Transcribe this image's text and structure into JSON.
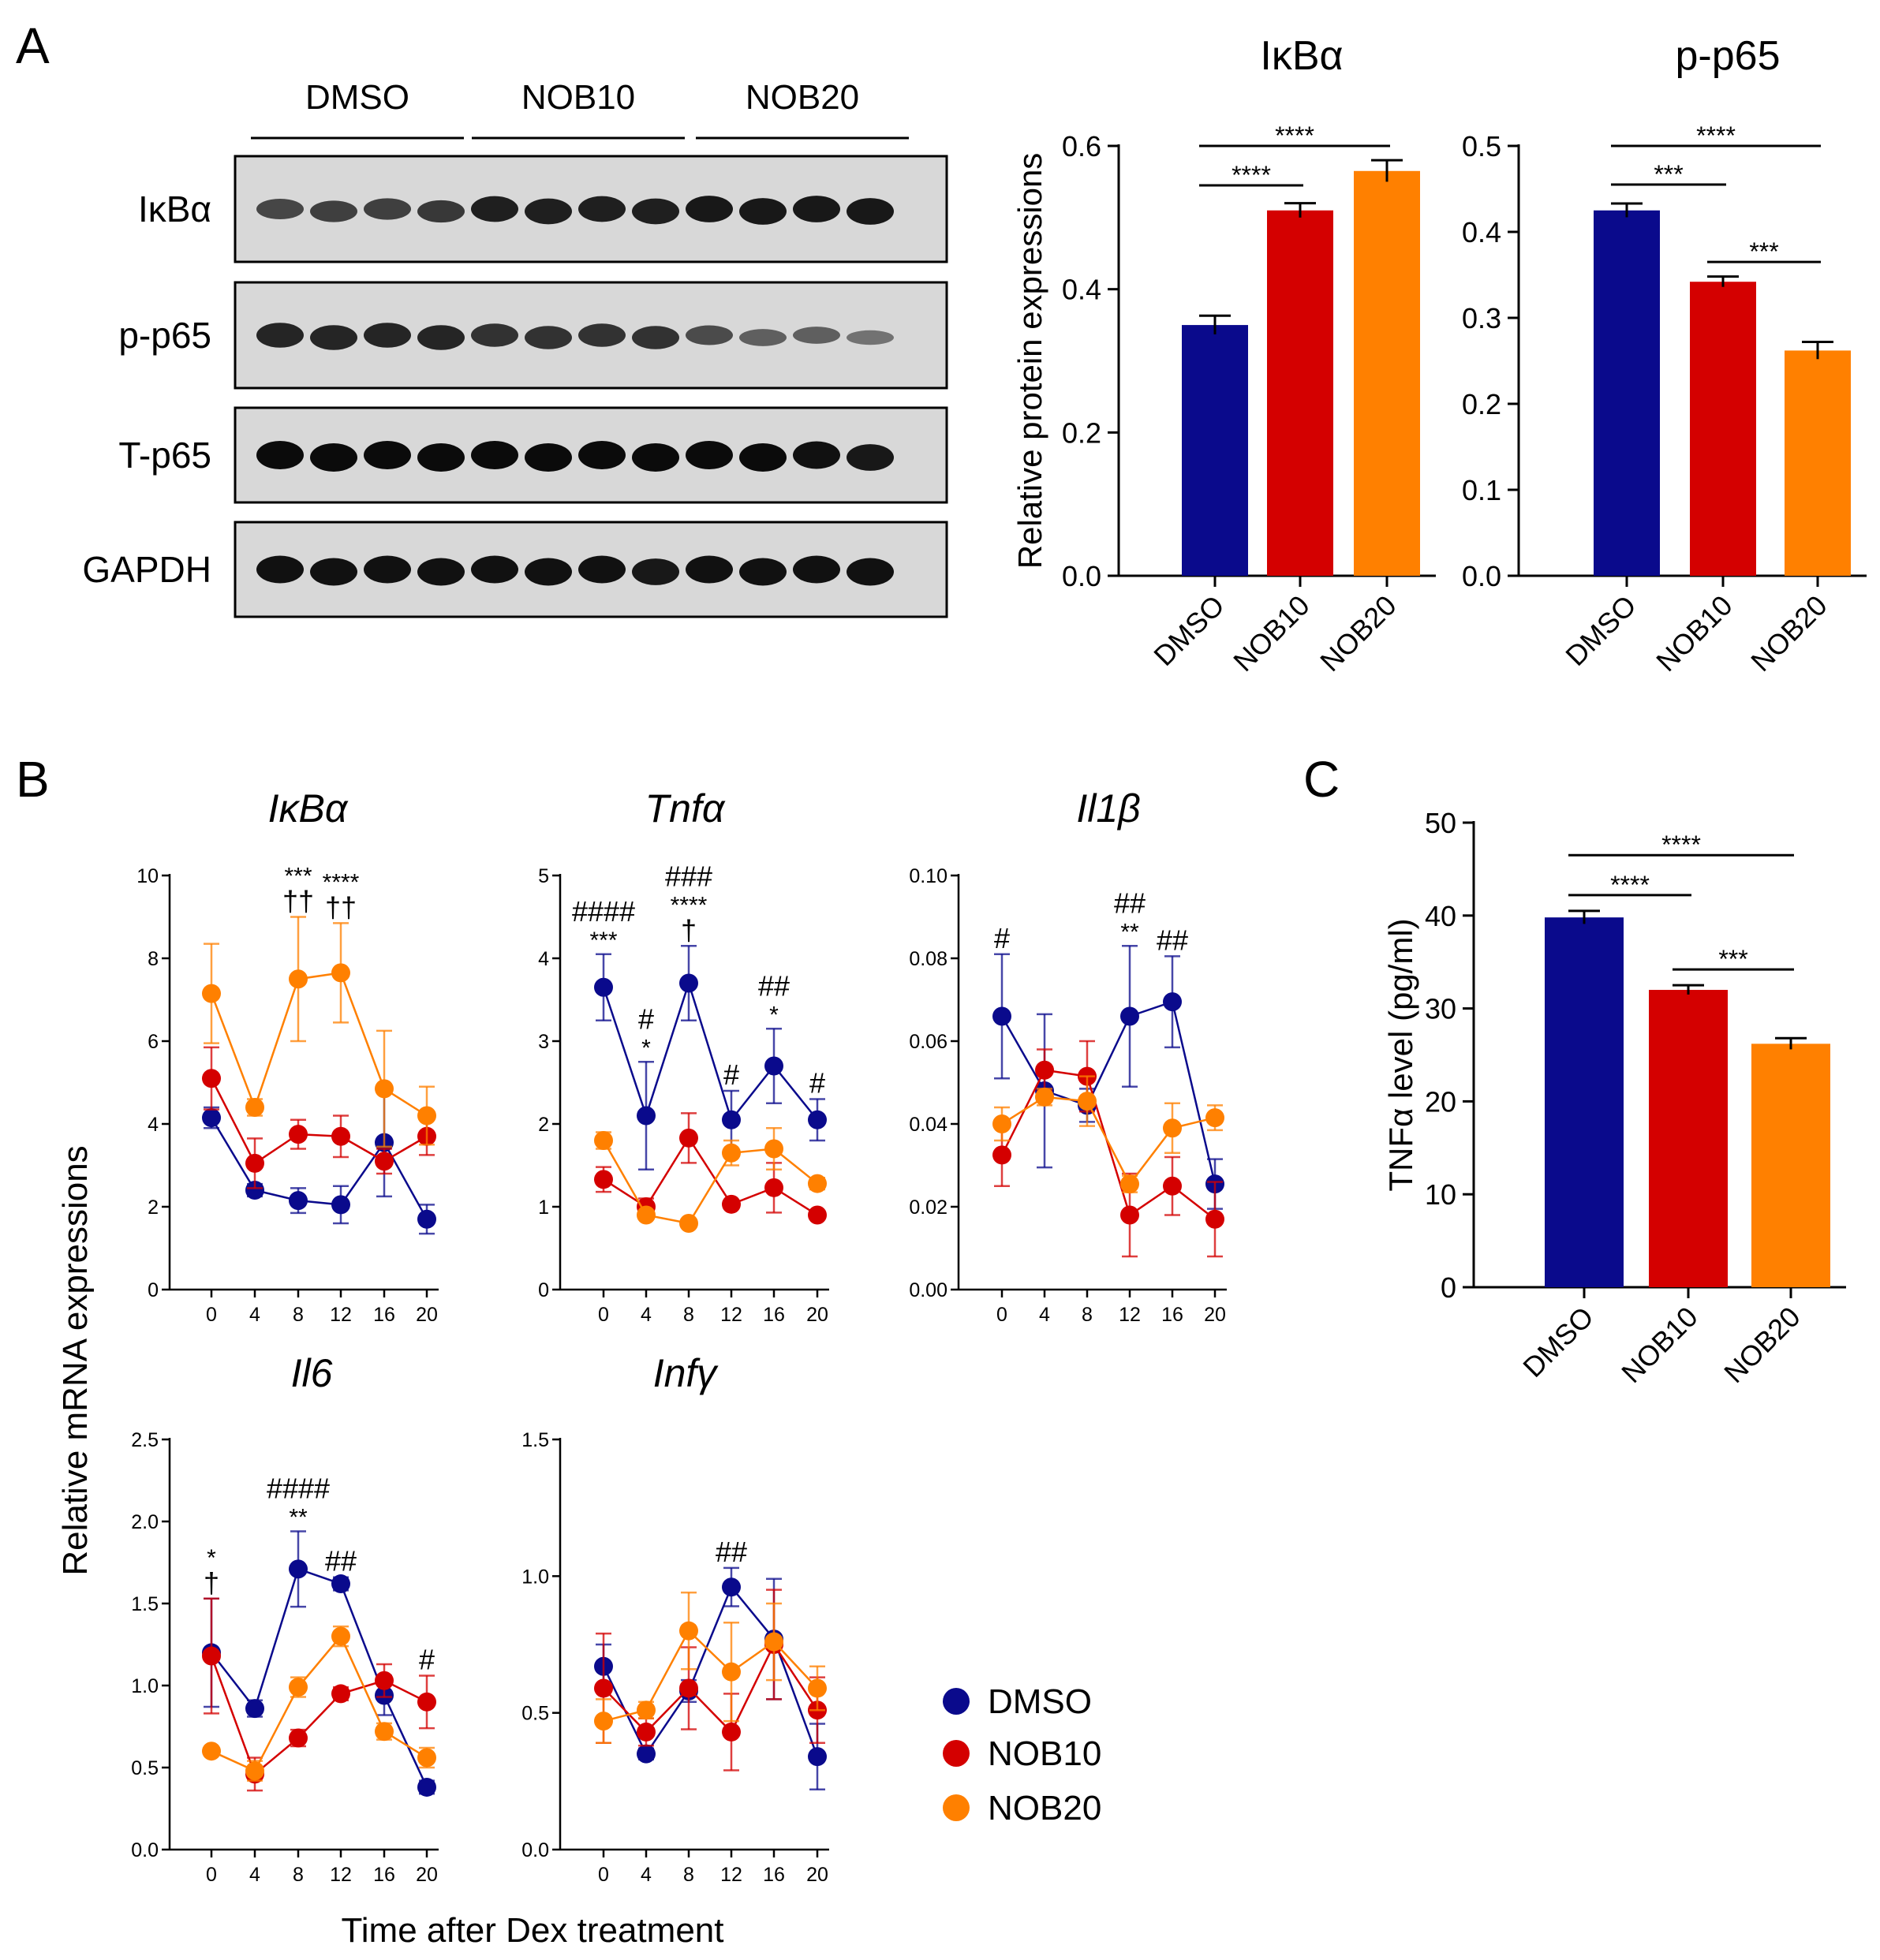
{
  "colors": {
    "DMSO": "#0a0a8c",
    "NOB10": "#d40000",
    "NOB20": "#ff8000"
  },
  "panel_labels": [
    "A",
    "B",
    "C"
  ],
  "blot": {
    "groups": [
      "DMSO",
      "NOB10",
      "NOB20"
    ],
    "rows": [
      {
        "label": "IκBα",
        "intensity": [
          0.55,
          0.6,
          0.6,
          0.65,
          0.85,
          0.85,
          0.85,
          0.85,
          0.9,
          0.9,
          0.9,
          0.9
        ]
      },
      {
        "label": "p-p65",
        "intensity": [
          0.8,
          0.8,
          0.8,
          0.8,
          0.7,
          0.7,
          0.7,
          0.7,
          0.5,
          0.35,
          0.35,
          0.2
        ]
      },
      {
        "label": "T-p65",
        "intensity": [
          1,
          1,
          1,
          1,
          1,
          1,
          1,
          1,
          1,
          1,
          0.95,
          0.9
        ]
      },
      {
        "label": "GAPDH",
        "intensity": [
          0.95,
          0.95,
          0.95,
          0.95,
          0.95,
          0.95,
          0.95,
          0.9,
          0.95,
          0.95,
          0.95,
          0.95
        ]
      }
    ]
  },
  "legend": [
    "DMSO",
    "NOB10",
    "NOB20"
  ],
  "x_common_label": "Time after Dex treatment",
  "y_common_label": "Relative mRNA expressions",
  "chart_data": [
    {
      "id": "A-ikba",
      "type": "bar",
      "title": "IκBα",
      "ylabel": "Relative protein expressions",
      "categories": [
        "DMSO",
        "NOB10",
        "NOB20"
      ],
      "values": [
        0.35,
        0.51,
        0.565
      ],
      "errors": [
        0.013,
        0.01,
        0.015
      ],
      "ylim": [
        0,
        0.6
      ],
      "yticks": [
        "0.0",
        "0.2",
        "0.4",
        "0.6"
      ],
      "significance": [
        {
          "from": 0,
          "to": 1,
          "y": 0.545,
          "text": "****"
        },
        {
          "from": 0,
          "to": 2,
          "y": 0.6,
          "text": "****"
        }
      ]
    },
    {
      "id": "A-pp65",
      "type": "bar",
      "title": "p-p65",
      "ylabel": "",
      "categories": [
        "DMSO",
        "NOB10",
        "NOB20"
      ],
      "values": [
        0.425,
        0.342,
        0.262
      ],
      "errors": [
        0.008,
        0.006,
        0.01
      ],
      "ylim": [
        0,
        0.5
      ],
      "yticks": [
        "0.0",
        "0.1",
        "0.2",
        "0.3",
        "0.4",
        "0.5"
      ],
      "significance": [
        {
          "from": 0,
          "to": 1,
          "y": 0.455,
          "text": "***"
        },
        {
          "from": 0,
          "to": 2,
          "y": 0.5,
          "text": "****"
        },
        {
          "from": 1,
          "to": 2,
          "y": 0.365,
          "text": "***"
        }
      ]
    },
    {
      "id": "C-tnfa",
      "type": "bar",
      "title": "",
      "ylabel": "TNFα level (pg/ml)",
      "categories": [
        "DMSO",
        "NOB10",
        "NOB20"
      ],
      "values": [
        39.8,
        32,
        26.2
      ],
      "errors": [
        0.7,
        0.5,
        0.6
      ],
      "ylim": [
        0,
        50
      ],
      "yticks": [
        "0",
        "10",
        "20",
        "30",
        "40",
        "50"
      ],
      "significance": [
        {
          "from": 0,
          "to": 1,
          "y": 42.2,
          "text": "****"
        },
        {
          "from": 0,
          "to": 2,
          "y": 46.5,
          "text": "****"
        },
        {
          "from": 1,
          "to": 2,
          "y": 34.2,
          "text": "***"
        }
      ]
    },
    {
      "id": "B-ikba",
      "type": "line",
      "title": "IκBα",
      "x": [
        0,
        4,
        8,
        12,
        16,
        20
      ],
      "ylim": [
        0,
        10
      ],
      "yticks": [
        "0",
        "2",
        "4",
        "6",
        "8",
        "10"
      ],
      "series": [
        {
          "name": "DMSO",
          "values": [
            4.15,
            2.4,
            2.15,
            2.05,
            3.55,
            1.7
          ],
          "errors": [
            0.25,
            0.15,
            0.3,
            0.45,
            1.3,
            0.35
          ]
        },
        {
          "name": "NOB10",
          "values": [
            5.1,
            3.05,
            3.75,
            3.7,
            3.1,
            3.7
          ],
          "errors": [
            0.75,
            0.6,
            0.35,
            0.5,
            0.3,
            0.45
          ]
        },
        {
          "name": "NOB20",
          "values": [
            7.15,
            4.4,
            7.5,
            7.65,
            4.85,
            4.2
          ],
          "errors": [
            1.2,
            0.2,
            1.5,
            1.2,
            1.4,
            0.7
          ]
        }
      ],
      "annotations": [
        {
          "x": 8,
          "lines": [
            "***",
            "††"
          ]
        },
        {
          "x": 12,
          "lines": [
            "****",
            "††"
          ]
        }
      ]
    },
    {
      "id": "B-tnfa",
      "type": "line",
      "title": "Tnfα",
      "x": [
        0,
        4,
        8,
        12,
        16,
        20
      ],
      "ylim": [
        0,
        5
      ],
      "yticks": [
        "0",
        "1",
        "2",
        "3",
        "4",
        "5"
      ],
      "series": [
        {
          "name": "DMSO",
          "values": [
            3.65,
            2.1,
            3.7,
            2.05,
            2.7,
            2.05
          ],
          "errors": [
            0.4,
            0.65,
            0.45,
            0.35,
            0.45,
            0.25
          ]
        },
        {
          "name": "NOB10",
          "values": [
            1.33,
            1.0,
            1.83,
            1.03,
            1.23,
            0.9
          ],
          "errors": [
            0.15,
            0.1,
            0.3,
            0.05,
            0.3,
            0.05
          ]
        },
        {
          "name": "NOB20",
          "values": [
            1.8,
            0.9,
            0.8,
            1.65,
            1.7,
            1.28
          ],
          "errors": [
            0.1,
            0.05,
            0.05,
            0.15,
            0.25,
            0.07
          ]
        }
      ],
      "annotations": [
        {
          "x": 0,
          "lines": [
            "####",
            "***"
          ]
        },
        {
          "x": 4,
          "lines": [
            "#",
            "*"
          ]
        },
        {
          "x": 8,
          "lines": [
            "###",
            "****",
            "†"
          ]
        },
        {
          "x": 12,
          "lines": [
            "#"
          ]
        },
        {
          "x": 16,
          "lines": [
            "##",
            "*"
          ]
        },
        {
          "x": 20,
          "lines": [
            "#"
          ]
        }
      ]
    },
    {
      "id": "B-il1b",
      "type": "line",
      "title": "Il1β",
      "x": [
        0,
        4,
        8,
        12,
        16,
        20
      ],
      "ylim": [
        0,
        0.1
      ],
      "yticks": [
        "0.00",
        "0.02",
        "0.04",
        "0.06",
        "0.08",
        "0.10"
      ],
      "series": [
        {
          "name": "DMSO",
          "values": [
            0.066,
            0.048,
            0.0445,
            0.066,
            0.0695,
            0.0255
          ],
          "errors": [
            0.015,
            0.0185,
            0.004,
            0.017,
            0.011,
            0.006
          ]
        },
        {
          "name": "NOB10",
          "values": [
            0.0325,
            0.053,
            0.0515,
            0.018,
            0.025,
            0.017
          ],
          "errors": [
            0.0075,
            0.005,
            0.0085,
            0.01,
            0.007,
            0.009
          ]
        },
        {
          "name": "NOB20",
          "values": [
            0.04,
            0.0465,
            0.0455,
            0.0255,
            0.039,
            0.0415
          ],
          "errors": [
            0.004,
            0.002,
            0.006,
            0.002,
            0.006,
            0.003
          ]
        }
      ],
      "annotations": [
        {
          "x": 0,
          "lines": [
            "#"
          ]
        },
        {
          "x": 12,
          "lines": [
            "##",
            "**"
          ]
        },
        {
          "x": 16,
          "lines": [
            "##"
          ]
        }
      ]
    },
    {
      "id": "B-il6",
      "type": "line",
      "title": "Il6",
      "x": [
        0,
        4,
        8,
        12,
        16,
        20
      ],
      "ylim": [
        0,
        2.5
      ],
      "yticks": [
        "0.0",
        "0.5",
        "1.0",
        "1.5",
        "2.0",
        "2.5"
      ],
      "series": [
        {
          "name": "DMSO",
          "values": [
            1.2,
            0.86,
            1.71,
            1.62,
            0.94,
            0.38
          ],
          "errors": [
            0.33,
            0.05,
            0.23,
            0.04,
            0.12,
            0.04
          ]
        },
        {
          "name": "NOB10",
          "values": [
            1.18,
            0.46,
            0.68,
            0.95,
            1.03,
            0.9
          ],
          "errors": [
            0.35,
            0.1,
            0.05,
            0.04,
            0.1,
            0.16
          ]
        },
        {
          "name": "NOB20",
          "values": [
            0.6,
            0.48,
            0.99,
            1.3,
            0.72,
            0.56
          ],
          "errors": [
            0.02,
            0.06,
            0.06,
            0.06,
            0.05,
            0.06
          ]
        }
      ],
      "annotations": [
        {
          "x": 0,
          "lines": [
            "*",
            "†"
          ]
        },
        {
          "x": 8,
          "lines": [
            "####",
            "**"
          ]
        },
        {
          "x": 12,
          "lines": [
            "##"
          ]
        },
        {
          "x": 20,
          "lines": [
            "#"
          ]
        }
      ]
    },
    {
      "id": "B-infg",
      "type": "line",
      "title": "Infγ",
      "x": [
        0,
        4,
        8,
        12,
        16,
        20
      ],
      "ylim": [
        0,
        1.5
      ],
      "yticks": [
        "0.0",
        "0.5",
        "1.0",
        "1.5"
      ],
      "series": [
        {
          "name": "DMSO",
          "values": [
            0.67,
            0.35,
            0.58,
            0.96,
            0.77,
            0.34
          ],
          "errors": [
            0.08,
            0.02,
            0.04,
            0.07,
            0.22,
            0.12
          ]
        },
        {
          "name": "NOB10",
          "values": [
            0.59,
            0.43,
            0.59,
            0.43,
            0.75,
            0.51
          ],
          "errors": [
            0.2,
            0.05,
            0.15,
            0.14,
            0.2,
            0.12
          ]
        },
        {
          "name": "NOB20",
          "values": [
            0.47,
            0.51,
            0.8,
            0.65,
            0.76,
            0.59
          ],
          "errors": [
            0.08,
            0.03,
            0.14,
            0.18,
            0.14,
            0.08
          ]
        }
      ],
      "annotations": [
        {
          "x": 12,
          "lines": [
            "##"
          ]
        }
      ]
    }
  ]
}
